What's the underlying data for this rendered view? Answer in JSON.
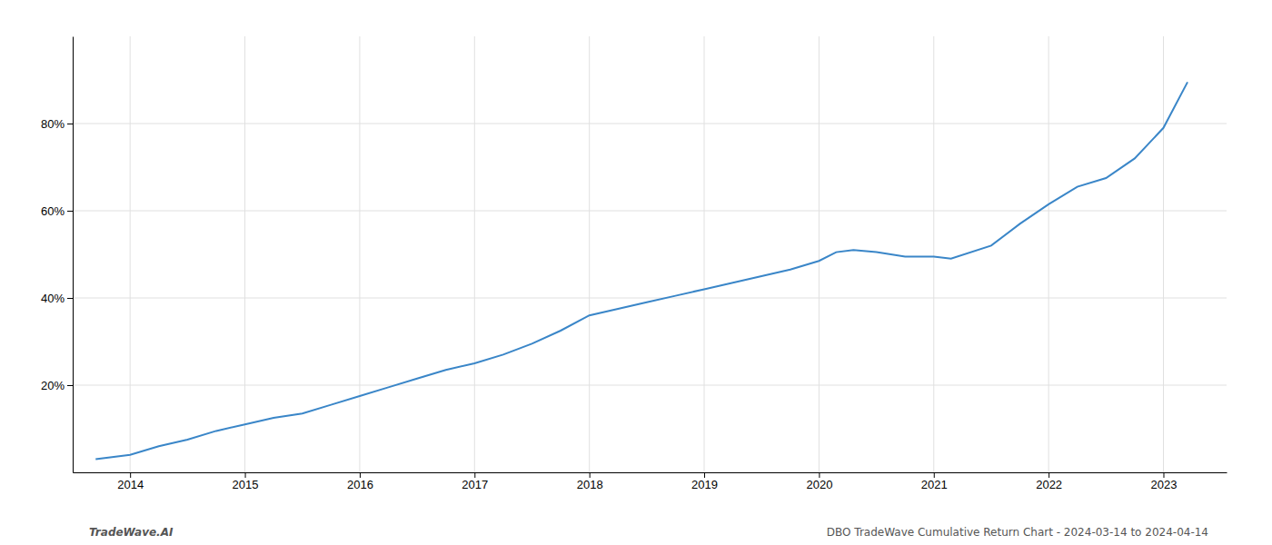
{
  "chart_data": {
    "type": "line",
    "x": [
      2013.7,
      2014.0,
      2014.25,
      2014.5,
      2014.75,
      2015.0,
      2015.25,
      2015.5,
      2015.75,
      2016.0,
      2016.25,
      2016.5,
      2016.75,
      2017.0,
      2017.25,
      2017.5,
      2017.75,
      2018.0,
      2018.25,
      2018.5,
      2018.75,
      2019.0,
      2019.25,
      2019.5,
      2019.75,
      2020.0,
      2020.15,
      2020.3,
      2020.5,
      2020.75,
      2021.0,
      2021.15,
      2021.5,
      2021.75,
      2022.0,
      2022.25,
      2022.5,
      2022.75,
      2023.0,
      2023.21
    ],
    "values": [
      3.0,
      4.0,
      6.0,
      7.5,
      9.5,
      11.0,
      12.5,
      13.5,
      15.5,
      17.5,
      19.5,
      21.5,
      23.5,
      25.0,
      27.0,
      29.5,
      32.5,
      36.0,
      37.5,
      39.0,
      40.5,
      42.0,
      43.5,
      45.0,
      46.5,
      48.5,
      50.5,
      51.0,
      50.5,
      49.5,
      49.5,
      49.0,
      52.0,
      57.0,
      61.5,
      65.5,
      67.5,
      72.0,
      79.0,
      89.5
    ],
    "color": "#3a86c8",
    "xlim": [
      2013.5,
      2023.55
    ],
    "xticks": [
      2014,
      2015,
      2016,
      2017,
      2018,
      2019,
      2020,
      2021,
      2022,
      2023
    ],
    "ylim": [
      0,
      100
    ],
    "yticks": [
      {
        "value": 20,
        "label": "20%"
      },
      {
        "value": 40,
        "label": "40%"
      },
      {
        "value": 60,
        "label": "60%"
      },
      {
        "value": 80,
        "label": "80%"
      }
    ],
    "grid": true,
    "annotations": [
      "TradeWave.AI",
      "DBO TradeWave Cumulative Return Chart - 2024-03-14 to 2024-04-14"
    ]
  }
}
